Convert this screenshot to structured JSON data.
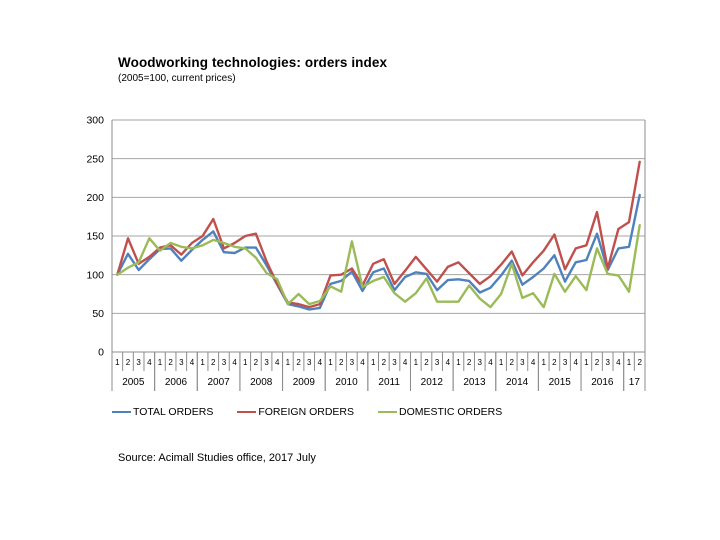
{
  "source": "Source: Acimall Studies office, 2017 July",
  "colors": {
    "background": "#FFFFFF",
    "grid": "#A6A6A6",
    "axis": "#8C8C8C",
    "text": "#000000"
  },
  "chart_data": {
    "type": "line",
    "title": "Woodworking technologies: orders index",
    "subtitle": "(2005=100, current prices)",
    "ylabel": "",
    "xlabel": "",
    "ylim": [
      0,
      300
    ],
    "y_ticks": [
      0,
      50,
      100,
      150,
      200,
      250,
      300
    ],
    "grid": true,
    "legend_position": "bottom",
    "x_axis": {
      "groups": [
        {
          "year": "2005",
          "quarters": [
            "1",
            "2",
            "3",
            "4"
          ]
        },
        {
          "year": "2006",
          "quarters": [
            "1",
            "2",
            "3",
            "4"
          ]
        },
        {
          "year": "2007",
          "quarters": [
            "1",
            "2",
            "3",
            "4"
          ]
        },
        {
          "year": "2008",
          "quarters": [
            "1",
            "2",
            "3",
            "4"
          ]
        },
        {
          "year": "2009",
          "quarters": [
            "1",
            "2",
            "3",
            "4"
          ]
        },
        {
          "year": "2010",
          "quarters": [
            "1",
            "2",
            "3",
            "4"
          ]
        },
        {
          "year": "2011",
          "quarters": [
            "1",
            "2",
            "3",
            "4"
          ]
        },
        {
          "year": "2012",
          "quarters": [
            "1",
            "2",
            "3",
            "4"
          ]
        },
        {
          "year": "2013",
          "quarters": [
            "1",
            "2",
            "3",
            "4"
          ]
        },
        {
          "year": "2014",
          "quarters": [
            "1",
            "2",
            "3",
            "4"
          ]
        },
        {
          "year": "2015",
          "quarters": [
            "1",
            "2",
            "3",
            "4"
          ]
        },
        {
          "year": "2016",
          "quarters": [
            "1",
            "2",
            "3",
            "4"
          ]
        },
        {
          "year": "17",
          "quarters": [
            "1",
            "2"
          ]
        }
      ]
    },
    "series": [
      {
        "name": "TOTAL ORDERS",
        "color": "#4F81BD",
        "values": [
          100,
          127,
          106,
          120,
          133,
          134,
          118,
          132,
          145,
          156,
          129,
          128,
          135,
          135,
          112,
          87,
          62,
          59,
          55,
          57,
          88,
          92,
          104,
          79,
          103,
          108,
          80,
          97,
          103,
          101,
          80,
          93,
          94,
          92,
          77,
          83,
          99,
          118,
          87,
          97,
          108,
          125,
          91,
          116,
          119,
          153,
          106,
          134,
          136,
          203
        ]
      },
      {
        "name": "FOREIGN ORDERS",
        "color": "#C0504D",
        "values": [
          100,
          147,
          114,
          123,
          135,
          138,
          126,
          141,
          150,
          172,
          134,
          141,
          150,
          153,
          117,
          88,
          64,
          62,
          58,
          62,
          99,
          100,
          108,
          86,
          114,
          120,
          88,
          105,
          123,
          107,
          91,
          110,
          116,
          102,
          88,
          98,
          113,
          130,
          99,
          116,
          131,
          152,
          107,
          134,
          138,
          181,
          108,
          159,
          168,
          246
        ]
      },
      {
        "name": "DOMESTIC ORDERS",
        "color": "#9BBB59",
        "values": [
          100,
          109,
          116,
          147,
          131,
          141,
          136,
          134,
          138,
          145,
          141,
          136,
          134,
          122,
          102,
          94,
          62,
          75,
          62,
          66,
          85,
          78,
          143,
          84,
          92,
          97,
          76,
          65,
          76,
          95,
          65,
          65,
          65,
          86,
          69,
          58,
          75,
          114,
          70,
          76,
          58,
          101,
          78,
          98,
          80,
          134,
          101,
          99,
          78,
          164
        ]
      }
    ]
  }
}
